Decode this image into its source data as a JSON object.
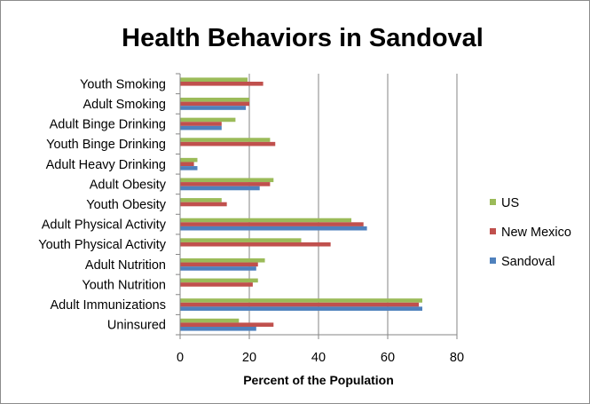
{
  "chart_data": {
    "type": "bar",
    "orientation": "horizontal",
    "title": "Health Behaviors in Sandoval",
    "xlabel": "Percent of the Population",
    "ylabel": "",
    "xlim": [
      0,
      80
    ],
    "xticks": [
      0,
      20,
      40,
      60,
      80
    ],
    "grid": "vertical major gridlines",
    "legend_position": "right",
    "categories": [
      "Youth Smoking",
      "Adult Smoking",
      "Adult Binge Drinking",
      "Youth Binge Drinking",
      "Adult Heavy Drinking",
      "Adult Obesity",
      "Youth Obesity",
      "Adult Physical Activity",
      "Youth Physical Activity",
      "Adult Nutrition",
      "Youth Nutrition",
      "Adult Immunizations",
      "Uninsured"
    ],
    "series": [
      {
        "name": "US",
        "color": "#9bbb59",
        "values": [
          19.5,
          20,
          16,
          26,
          5,
          27,
          12,
          49.5,
          35,
          24.5,
          22.5,
          70,
          17
        ]
      },
      {
        "name": "New Mexico",
        "color": "#c0504d",
        "values": [
          24,
          20,
          12,
          27.5,
          4,
          26,
          13.5,
          53,
          43.5,
          22.5,
          21,
          69,
          27
        ]
      },
      {
        "name": "Sandoval",
        "color": "#4f81bd",
        "values": [
          null,
          19,
          12,
          null,
          5,
          23,
          null,
          54,
          null,
          22,
          null,
          70,
          22
        ]
      }
    ]
  }
}
